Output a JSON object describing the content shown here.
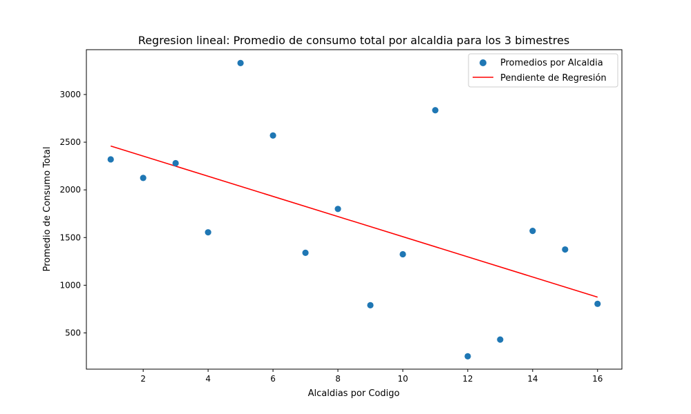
{
  "chart_data": {
    "type": "scatter",
    "title": "Regresion lineal: Promedio de consumo total por alcaldia para los 3 bimestres",
    "xlabel": "Alcaldias por Codigo",
    "ylabel": "Promedio de Consumo Total",
    "xlim": [
      0.25,
      16.75
    ],
    "ylim": [
      120,
      3470
    ],
    "xticks": [
      2,
      4,
      6,
      8,
      10,
      12,
      14,
      16
    ],
    "yticks": [
      500,
      1000,
      1500,
      2000,
      2500,
      3000
    ],
    "grid": false,
    "legend_position": "top-right",
    "series": [
      {
        "name": "Promedios por Alcaldia",
        "kind": "scatter",
        "color": "#1f77b4",
        "x": [
          1,
          2,
          3,
          4,
          5,
          6,
          7,
          8,
          9,
          10,
          11,
          12,
          13,
          14,
          15,
          16
        ],
        "y": [
          2320,
          2125,
          2280,
          1555,
          3330,
          2570,
          1340,
          1800,
          790,
          1325,
          2835,
          255,
          430,
          1570,
          1375,
          805
        ]
      },
      {
        "name": "Pendiente de Regresión",
        "kind": "line",
        "color": "#ff0000",
        "x": [
          1,
          16
        ],
        "y": [
          2460,
          875
        ]
      }
    ]
  }
}
